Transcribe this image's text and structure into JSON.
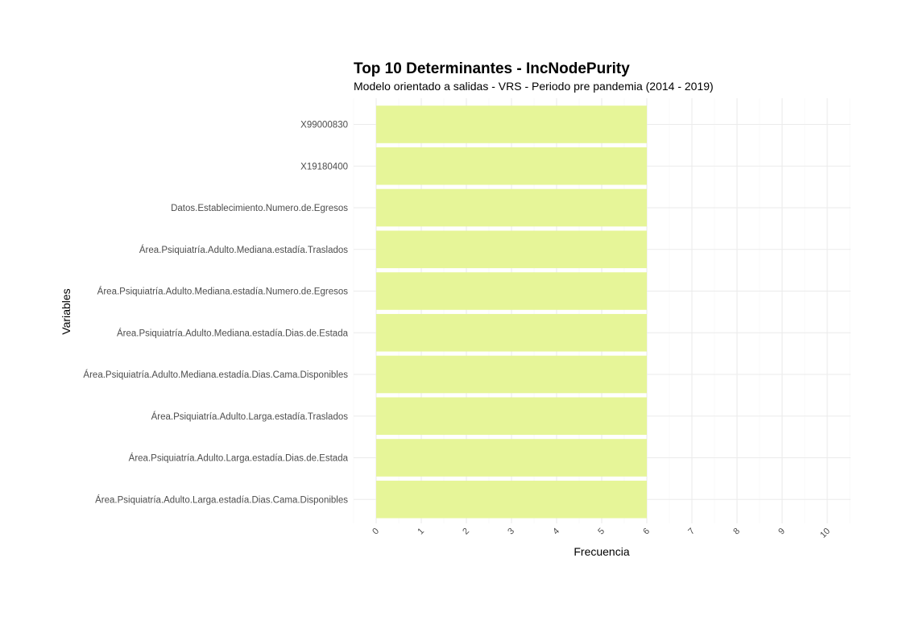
{
  "chart_data": {
    "type": "bar",
    "orientation": "horizontal",
    "title": "Top 10 Determinantes - IncNodePurity",
    "subtitle": "Modelo orientado a salidas - VRS - Periodo pre pandemia (2014 - 2019)",
    "xlabel": "Frecuencia",
    "ylabel": "Variables",
    "categories": [
      "X99000830",
      "X19180400",
      "Datos.Establecimiento.Numero.de.Egresos",
      "Área.Psiquiatría.Adulto.Mediana.estadía.Traslados",
      "Área.Psiquiatría.Adulto.Mediana.estadía.Numero.de.Egresos",
      "Área.Psiquiatría.Adulto.Mediana.estadía.Dias.de.Estada",
      "Área.Psiquiatría.Adulto.Mediana.estadía.Dias.Cama.Disponibles",
      "Área.Psiquiatría.Adulto.Larga.estadía.Traslados",
      "Área.Psiquiatría.Adulto.Larga.estadía.Dias.de.Estada",
      "Área.Psiquiatría.Adulto.Larga.estadía.Dias.Cama.Disponibles"
    ],
    "values": [
      6,
      6,
      6,
      6,
      6,
      6,
      6,
      6,
      6,
      6
    ],
    "xlim": [
      0,
      10
    ],
    "x_ticks": [
      "0",
      "1",
      "2",
      "3",
      "4",
      "5",
      "6",
      "7",
      "8",
      "9",
      "10"
    ],
    "bar_color": "#e6f598",
    "grid": true,
    "legend": "none"
  }
}
